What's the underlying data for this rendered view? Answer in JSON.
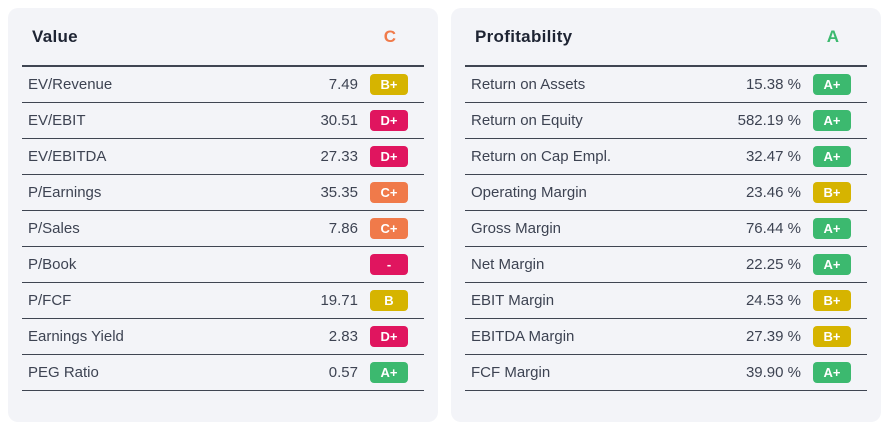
{
  "colors": {
    "yellow": "#d6b400",
    "crimson": "#e0155f",
    "orange": "#f07a4a",
    "green": "#3cb96f"
  },
  "value": {
    "title": "Value",
    "grade": "C",
    "grade_color": "#f07a4a",
    "rows": [
      {
        "label": "EV/Revenue",
        "value": "7.49",
        "grade": "B+",
        "color": "#d6b400"
      },
      {
        "label": "EV/EBIT",
        "value": "30.51",
        "grade": "D+",
        "color": "#e0155f"
      },
      {
        "label": "EV/EBITDA",
        "value": "27.33",
        "grade": "D+",
        "color": "#e0155f"
      },
      {
        "label": "P/Earnings",
        "value": "35.35",
        "grade": "C+",
        "color": "#f07a4a"
      },
      {
        "label": "P/Sales",
        "value": "7.86",
        "grade": "C+",
        "color": "#f07a4a"
      },
      {
        "label": "P/Book",
        "value": "",
        "grade": "-",
        "color": "#e0155f"
      },
      {
        "label": "P/FCF",
        "value": "19.71",
        "grade": "B",
        "color": "#d6b400"
      },
      {
        "label": "Earnings Yield",
        "value": "2.83",
        "grade": "D+",
        "color": "#e0155f"
      },
      {
        "label": "PEG Ratio",
        "value": "0.57",
        "grade": "A+",
        "color": "#3cb96f"
      }
    ]
  },
  "profitability": {
    "title": "Profitability",
    "grade": "A",
    "grade_color": "#3cb96f",
    "rows": [
      {
        "label": "Return on Assets",
        "value": "15.38 %",
        "grade": "A+",
        "color": "#3cb96f"
      },
      {
        "label": "Return on Equity",
        "value": "582.19 %",
        "grade": "A+",
        "color": "#3cb96f"
      },
      {
        "label": "Return on Cap Empl.",
        "value": "32.47 %",
        "grade": "A+",
        "color": "#3cb96f"
      },
      {
        "label": "Operating Margin",
        "value": "23.46 %",
        "grade": "B+",
        "color": "#d6b400"
      },
      {
        "label": "Gross Margin",
        "value": "76.44 %",
        "grade": "A+",
        "color": "#3cb96f"
      },
      {
        "label": "Net Margin",
        "value": "22.25 %",
        "grade": "A+",
        "color": "#3cb96f"
      },
      {
        "label": "EBIT Margin",
        "value": "24.53 %",
        "grade": "B+",
        "color": "#d6b400"
      },
      {
        "label": "EBITDA Margin",
        "value": "27.39 %",
        "grade": "B+",
        "color": "#d6b400"
      },
      {
        "label": "FCF Margin",
        "value": "39.90 %",
        "grade": "A+",
        "color": "#3cb96f"
      }
    ]
  }
}
